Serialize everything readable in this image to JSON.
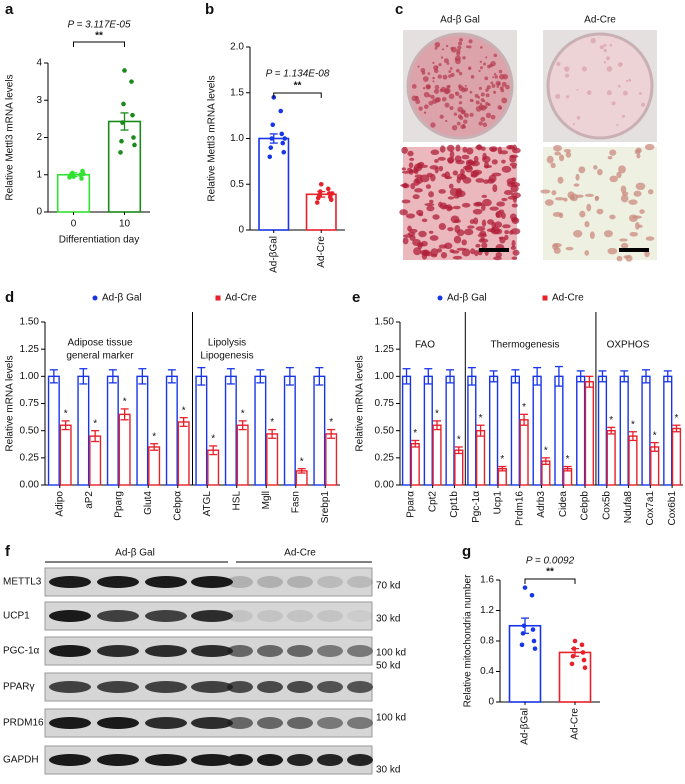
{
  "chart_data": [
    {
      "type": "bar",
      "panel_label": "a",
      "ylabel": "Relative Mettl3 mRNA levels",
      "xlabel": "Differentiation day",
      "categories": [
        "0",
        "10"
      ],
      "values": [
        1.0,
        2.43
      ],
      "errors": [
        0.05,
        0.23
      ],
      "colors": [
        "#33e033",
        "#1a8a1a"
      ],
      "points": [
        [
          0.95,
          1.0,
          1.05,
          0.9,
          1.0,
          1.1,
          0.98,
          1.02,
          0.93
        ],
        [
          3.8,
          3.5,
          2.9,
          2.6,
          2.4,
          2.0,
          1.9,
          1.8,
          1.6
        ]
      ],
      "ylim": [
        0,
        4
      ],
      "yticks": [
        0,
        1,
        2,
        3,
        4
      ],
      "p_value": "P = 3.117E-05",
      "significance": "**"
    },
    {
      "type": "bar",
      "panel_label": "b",
      "ylabel": "Relative Mettl3 mRNA levels",
      "categories": [
        "Ad-βGal",
        "Ad-Cre"
      ],
      "values": [
        1.0,
        0.39
      ],
      "errors": [
        0.05,
        0.03
      ],
      "colors": [
        "#1836e8",
        "#e8202a"
      ],
      "points": [
        [
          1.45,
          1.3,
          1.15,
          1.05,
          1.0,
          0.95,
          0.9,
          0.85,
          0.8,
          1.0
        ],
        [
          0.5,
          0.45,
          0.42,
          0.4,
          0.38,
          0.36,
          0.35,
          0.33,
          0.3,
          0.4
        ]
      ],
      "ylim": [
        0,
        2
      ],
      "yticks": [
        0,
        0.5,
        {
          "value": 1,
          "label": "1.0"
        },
        1.5,
        {
          "value": 2,
          "label": "2.0"
        }
      ],
      "p_value": "P = 1.134E-08",
      "significance": "**"
    },
    {
      "type": "bar",
      "panel_label": "d",
      "ylabel": "Relative mRNA levels",
      "categories": [
        "Adipo",
        "aP2",
        "Pparg",
        "Glut4",
        "Cebpα",
        "ATGL",
        "HSL",
        "Mgll",
        "Fasn",
        "Srebp1"
      ],
      "series": [
        {
          "name": "Ad-β Gal",
          "color": "#1836e8",
          "values": [
            1.0,
            1.0,
            1.0,
            1.0,
            1.0,
            1.0,
            1.0,
            1.0,
            1.0,
            1.0
          ],
          "errors": [
            0.06,
            0.07,
            0.06,
            0.07,
            0.06,
            0.08,
            0.07,
            0.06,
            0.08,
            0.08
          ]
        },
        {
          "name": "Ad-Cre",
          "color": "#e8202a",
          "values": [
            0.55,
            0.45,
            0.65,
            0.35,
            0.58,
            0.32,
            0.55,
            0.47,
            0.13,
            0.47
          ],
          "errors": [
            0.04,
            0.05,
            0.05,
            0.03,
            0.04,
            0.04,
            0.04,
            0.04,
            0.02,
            0.04
          ]
        }
      ],
      "sig_labels": [
        "*",
        "*",
        "*",
        "*",
        "*",
        "*",
        "*",
        "*",
        "*",
        "*"
      ],
      "annotations": [
        "Adipose tissue",
        "general marker",
        "Lipolysis",
        "Lipogenesis"
      ],
      "ylim": [
        0,
        1.5
      ],
      "yticks": [
        {
          "value": 0,
          "label": "0.00"
        },
        {
          "value": 0.25,
          "label": "0.25"
        },
        {
          "value": 0.5,
          "label": "0.50"
        },
        {
          "value": 0.75,
          "label": "0.75"
        },
        {
          "value": 1,
          "label": "1.00"
        },
        {
          "value": 1.25,
          "label": "1.25"
        },
        {
          "value": 1.5,
          "label": "1.50"
        }
      ]
    },
    {
      "type": "bar",
      "panel_label": "e",
      "ylabel": "Relative mRNA levels",
      "categories": [
        "Pparα",
        "Cpt2",
        "Cpt1b",
        "Pgc-1α",
        "Ucp1",
        "Prdm16",
        "Adrb3",
        "Cidea",
        "Cebpb",
        "Cox5b",
        "Ndufa8",
        "Cox7a1",
        "Cox6b1"
      ],
      "series": [
        {
          "name": "Ad-β Gal",
          "color": "#1836e8",
          "values": [
            1.0,
            1.0,
            1.0,
            1.0,
            1.0,
            1.0,
            1.0,
            1.0,
            1.0,
            1.0,
            1.0,
            1.0,
            1.0
          ],
          "errors": [
            0.07,
            0.07,
            0.06,
            0.08,
            0.05,
            0.06,
            0.08,
            0.09,
            0.05,
            0.05,
            0.05,
            0.06,
            0.05
          ]
        },
        {
          "name": "Ad-Cre",
          "color": "#e8202a",
          "values": [
            0.38,
            0.55,
            0.32,
            0.5,
            0.15,
            0.6,
            0.22,
            0.15,
            0.95,
            0.5,
            0.45,
            0.35,
            0.52
          ],
          "errors": [
            0.03,
            0.04,
            0.03,
            0.05,
            0.02,
            0.05,
            0.03,
            0.02,
            0.05,
            0.03,
            0.04,
            0.04,
            0.03
          ]
        }
      ],
      "sig_labels": [
        "*",
        "*",
        "*",
        "*",
        "*",
        "*",
        "*",
        "*",
        null,
        "*",
        "*",
        "*",
        "*"
      ],
      "annotations": [
        "FAO",
        "Thermogenesis",
        "OXPHOS"
      ],
      "ylim": [
        0,
        1.5
      ],
      "yticks": [
        {
          "value": 0,
          "label": "0.00"
        },
        {
          "value": 0.25,
          "label": "0.25"
        },
        {
          "value": 0.5,
          "label": "0.50"
        },
        {
          "value": 0.75,
          "label": "0.75"
        },
        {
          "value": 1,
          "label": "1.00"
        },
        {
          "value": 1.25,
          "label": "1.25"
        },
        {
          "value": 1.5,
          "label": "1.50"
        }
      ]
    },
    {
      "type": "bar",
      "panel_label": "g",
      "ylabel": "Relative mitochondria number",
      "categories": [
        "Ad-βGal",
        "Ad-Cre"
      ],
      "values": [
        1.0,
        0.65
      ],
      "errors": [
        0.1,
        0.05
      ],
      "colors": [
        "#1836e8",
        "#e8202a"
      ],
      "points": [
        [
          1.5,
          1.4,
          1.0,
          0.95,
          0.9,
          0.8,
          0.75,
          0.7
        ],
        [
          0.8,
          0.75,
          0.7,
          0.65,
          0.6,
          0.55,
          0.5,
          0.45
        ]
      ],
      "ylim": [
        0,
        1.6
      ],
      "yticks": [
        0,
        0.4,
        0.8,
        1.2,
        1.6
      ],
      "p_value": "P = 0.0092",
      "significance": "**"
    }
  ],
  "photos": {
    "panel_label": "c",
    "columns": [
      "Ad-β Gal",
      "Ad-Cre"
    ]
  },
  "blot": {
    "panel_label": "f",
    "groups": [
      "Ad-β Gal",
      "Ad-Cre"
    ],
    "rows": [
      "METTL3",
      "UCP1",
      "PGC-1α",
      "PPARγ",
      "PRDM16",
      "GAPDH"
    ],
    "markers": [
      "70 kd",
      "30 kd",
      "100 kd",
      "50 kd",
      "100 kd",
      "30 kd"
    ]
  }
}
